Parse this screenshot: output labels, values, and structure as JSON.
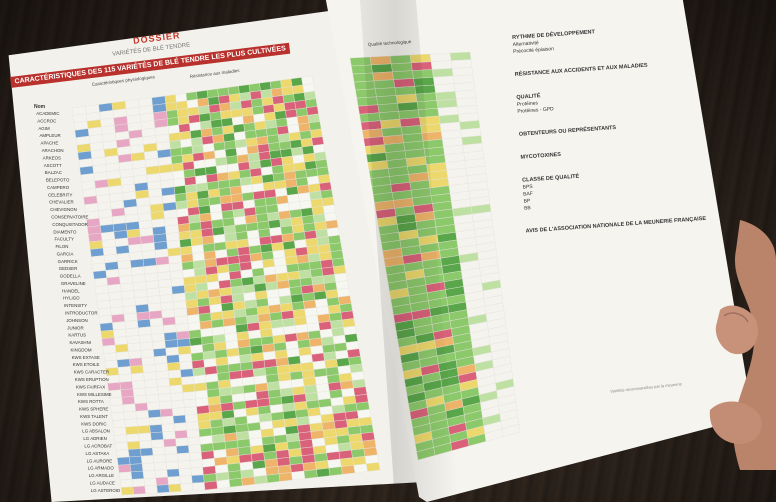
{
  "page": {
    "dossier_label": "DOSSIER",
    "dossier_subtitle": "VARIÉTÉS DE BLÉ TENDRE",
    "table_title": "CARACTÉRISTIQUES DES 115 VARIÉTÉS DE BLÉ TENDRE LES PLUS CULTIVÉES",
    "column_groups": [
      "Caractéristiques physiologiques",
      "Résistance aux maladies",
      "Qualité technologique"
    ],
    "name_header": "Nom",
    "varieties": [
      "ACADEMIC",
      "ACCROC",
      "AGIM",
      "AMPLEUR",
      "APACHE",
      "ARACHON",
      "ARKEOS",
      "ASCOTT",
      "BALZAC",
      "BELEPOTO",
      "CAMPERO",
      "CELEBRITY",
      "CHEVALIER",
      "CHEVIGNON",
      "CONSERVATOIRE",
      "CONQUISTADOR",
      "DIAMENTO",
      "FACULTY",
      "FILON",
      "GARCIA",
      "GARRICK",
      "GEDSER",
      "GODELLA",
      "GRAVELINE",
      "HANDEL",
      "HYLIGO",
      "INTENSITY",
      "INTRODUCTOR",
      "JOHNSON",
      "JUNIOR",
      "KARTUS",
      "KAVASHNI",
      "KINGDOM",
      "KWS EXTASE",
      "KWS ETOILE",
      "KWS CARACTER",
      "KWS ERUPTION",
      "KWS FAIRFAX",
      "KWS MILLESIME",
      "KWS ROTTA",
      "KWS SPHERE",
      "KWS TALENT",
      "KWS DORIC",
      "LG ABSALON",
      "LG ADRIEN",
      "LG ACROBAT",
      "LG ASTAKA",
      "LG AURORE",
      "LG ARMADO",
      "LG ARGILLE",
      "LG AUDACE",
      "LG ASTEROID"
    ],
    "legend_sections": [
      {
        "title": "RYTHME DE DÉVELOPPEMENT",
        "items": [
          "Alternativité",
          "Précocité épiaison"
        ]
      },
      {
        "title": "RÉSISTANCE AUX ACCIDENTS ET AUX MALADIES",
        "items": []
      },
      {
        "title": "QUALITÉ",
        "items": [
          "Protéines",
          "Protéines - GPD"
        ]
      },
      {
        "title": "OBTENTEURS OU REPRÉSENTANTS",
        "items": []
      },
      {
        "title": "MYCOTOXINES",
        "items": []
      },
      {
        "title": "CLASSE DE QUALITÉ",
        "items": [
          "BPS",
          "BAF",
          "BP",
          "BB"
        ]
      },
      {
        "title": "AVIS DE L'ASSOCIATION NATIONALE DE LA MEUNERIE FRANÇAISE",
        "items": []
      }
    ],
    "footer_note": "Variétés recommandées par la meunerie"
  },
  "colors": {
    "accent_red": "#b9312c",
    "cell_green_dark": "#5aa64a",
    "cell_green": "#8cc96b",
    "cell_green_light": "#bfe0a3",
    "cell_yellow": "#ecd86c",
    "cell_orange": "#eeb46a",
    "cell_red": "#d9627a",
    "cell_blue": "#6f9fd0",
    "cell_pink": "#e7a6c3",
    "page_bg": "#f3f1ec"
  }
}
